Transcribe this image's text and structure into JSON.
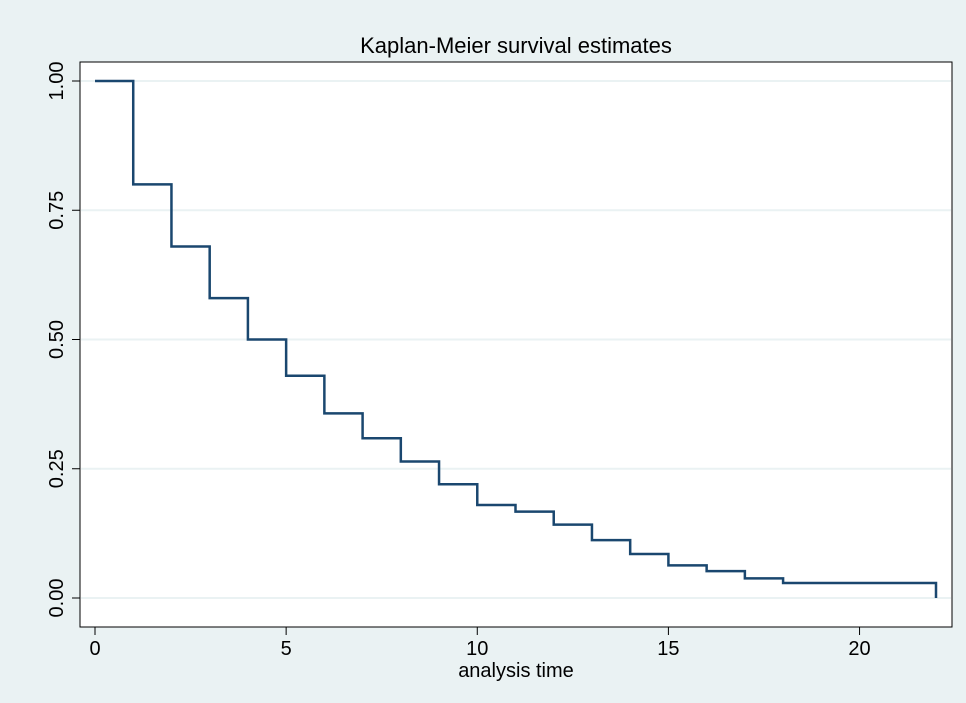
{
  "chart_data": {
    "type": "line",
    "step": true,
    "title": "Kaplan-Meier survival estimates",
    "xlabel": "analysis time",
    "ylabel": "",
    "xlim": [
      0,
      22
    ],
    "ylim": [
      0,
      1
    ],
    "xticks": [
      0,
      5,
      10,
      15,
      20
    ],
    "yticks": [
      "0.00",
      "0.25",
      "0.50",
      "0.75",
      "1.00"
    ],
    "grid": "horizontal",
    "colors": {
      "background": "#eaf2f3",
      "plot_area": "#ffffff",
      "grid": "#eaf2f3",
      "line": "#1a476f"
    },
    "series": [
      {
        "x": [
          0,
          1,
          2,
          3,
          4,
          5,
          6,
          7,
          8,
          9,
          10,
          11,
          12,
          13,
          14,
          15,
          16,
          17,
          18,
          19,
          20,
          21,
          22
        ],
        "y": [
          1.0,
          0.8,
          0.68,
          0.58,
          0.5,
          0.43,
          0.357,
          0.309,
          0.264,
          0.22,
          0.18,
          0.167,
          0.142,
          0.112,
          0.085,
          0.063,
          0.052,
          0.038,
          0.029,
          0.029,
          0.029,
          0.029,
          0.0
        ]
      }
    ]
  }
}
